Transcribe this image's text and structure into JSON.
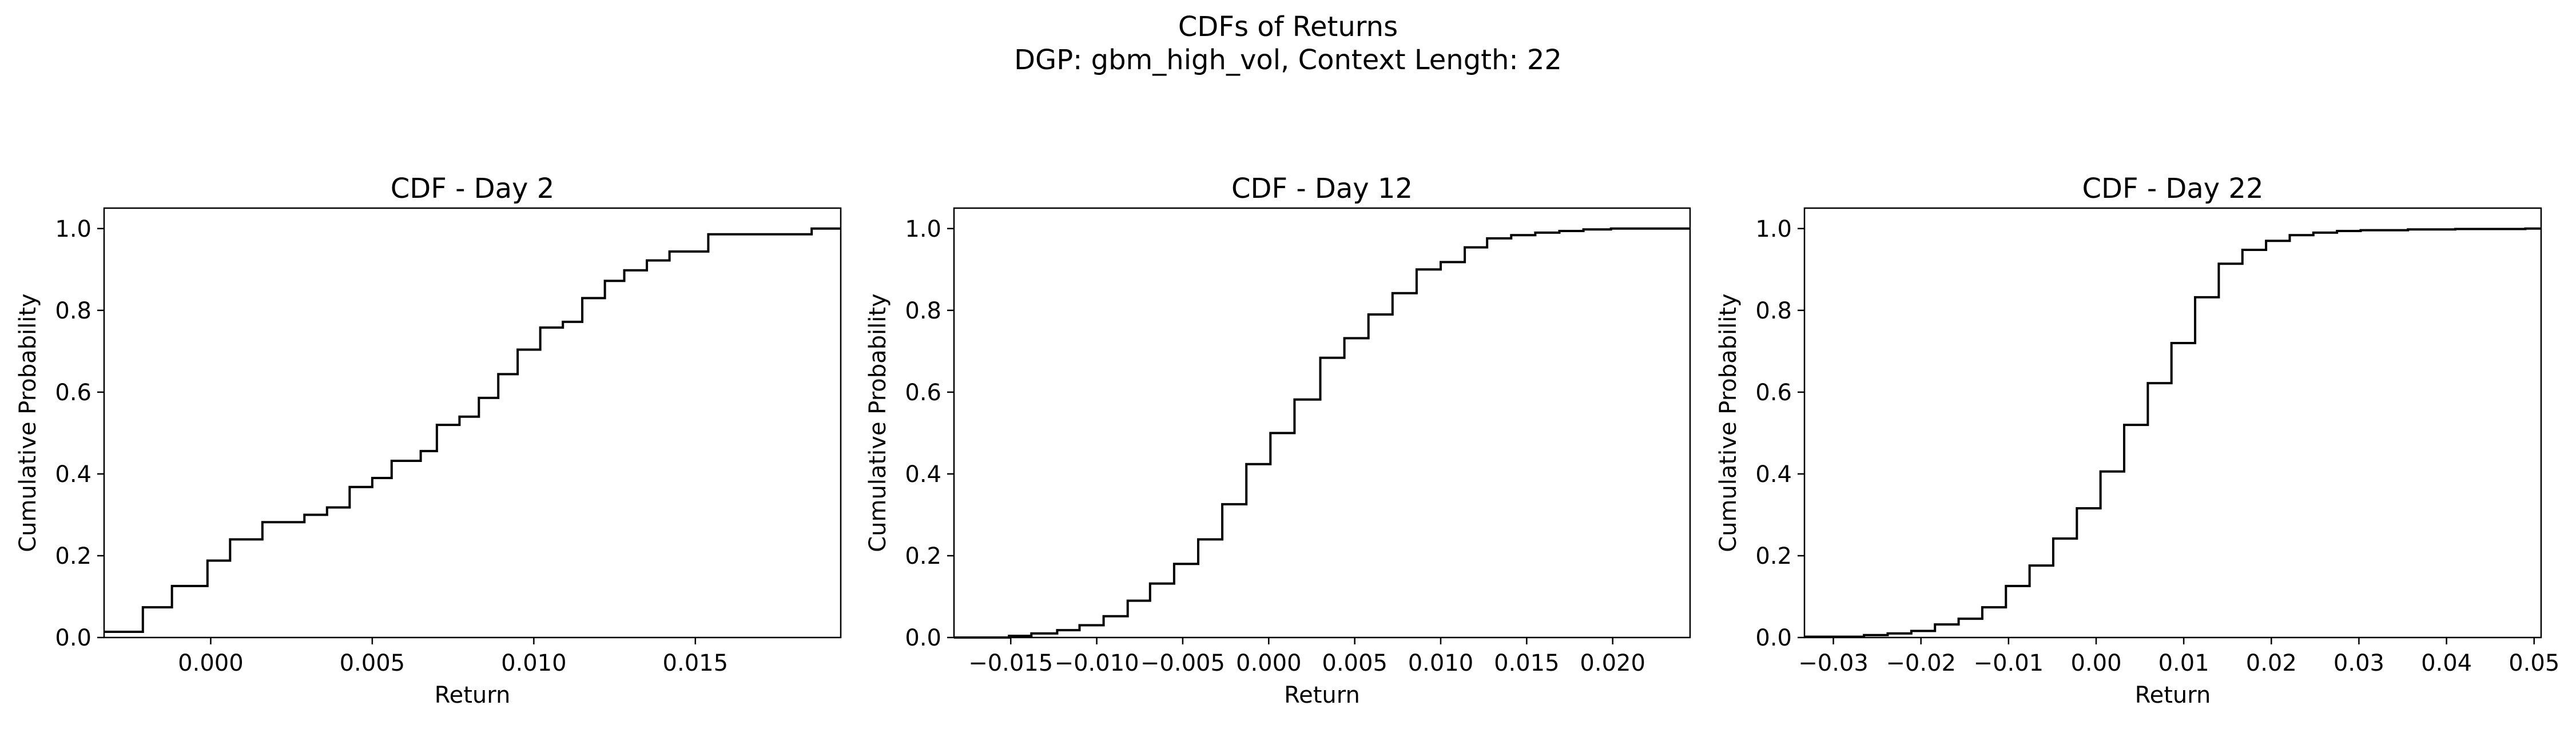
{
  "figure": {
    "title_line1": "CDFs of Returns",
    "title_line2": "DGP: gbm_high_vol, Context Length: 22"
  },
  "chart_data": [
    {
      "type": "line",
      "step": true,
      "title": "CDF - Day 2",
      "xlabel": "Return",
      "ylabel": "Cumulative Probability",
      "xlim": [
        -0.0033,
        0.0195
      ],
      "ylim": [
        0.0,
        1.05
      ],
      "xticks": [
        0.0,
        0.005,
        0.01,
        0.015
      ],
      "xtick_labels": [
        "0.000",
        "0.005",
        "0.010",
        "0.015"
      ],
      "yticks": [
        0.0,
        0.2,
        0.4,
        0.6,
        0.8,
        1.0
      ],
      "ytick_labels": [
        "0.0",
        "0.2",
        "0.4",
        "0.6",
        "0.8",
        "1.0"
      ],
      "grid": false,
      "color": "#000000",
      "series": [
        {
          "x": [
            -0.0033,
            -0.0021,
            -0.0012,
            -0.0001,
            0.0006,
            0.0016,
            0.0025,
            0.0029,
            0.0036,
            0.0043,
            0.005,
            0.0056,
            0.0065,
            0.007,
            0.0077,
            0.0083,
            0.0089,
            0.0095,
            0.0102,
            0.0109,
            0.0115,
            0.0122,
            0.0128,
            0.0135,
            0.0142,
            0.0147,
            0.0154,
            0.0159,
            0.0186,
            0.0195
          ],
          "y": [
            0.014,
            0.074,
            0.126,
            0.188,
            0.24,
            0.282,
            0.282,
            0.3,
            0.318,
            0.368,
            0.39,
            0.432,
            0.456,
            0.52,
            0.54,
            0.586,
            0.644,
            0.704,
            0.758,
            0.772,
            0.83,
            0.872,
            0.898,
            0.922,
            0.944,
            0.944,
            0.986,
            0.986,
            1.0,
            1.0
          ]
        }
      ]
    },
    {
      "type": "line",
      "step": true,
      "title": "CDF - Day 12",
      "xlabel": "Return",
      "ylabel": "Cumulative Probability",
      "xlim": [
        -0.0183,
        0.0245
      ],
      "ylim": [
        0.0,
        1.05
      ],
      "xticks": [
        -0.015,
        -0.01,
        -0.005,
        0.0,
        0.005,
        0.01,
        0.015,
        0.02
      ],
      "xtick_labels": [
        "−0.015",
        "−0.010",
        "−0.005",
        "0.000",
        "0.005",
        "0.010",
        "0.015",
        "0.020"
      ],
      "yticks": [
        0.0,
        0.2,
        0.4,
        0.6,
        0.8,
        1.0
      ],
      "ytick_labels": [
        "0.0",
        "0.2",
        "0.4",
        "0.6",
        "0.8",
        "1.0"
      ],
      "grid": false,
      "color": "#000000",
      "series": [
        {
          "x": [
            -0.0183,
            -0.0151,
            -0.0138,
            -0.0123,
            -0.011,
            -0.0096,
            -0.0082,
            -0.0069,
            -0.0055,
            -0.0041,
            -0.0027,
            -0.0013,
            0.0001,
            0.0015,
            0.003,
            0.0044,
            0.0058,
            0.0072,
            0.0086,
            0.01,
            0.0114,
            0.0127,
            0.0141,
            0.0155,
            0.0169,
            0.0183,
            0.0199,
            0.0245
          ],
          "y": [
            0.0,
            0.004,
            0.01,
            0.018,
            0.03,
            0.052,
            0.09,
            0.132,
            0.18,
            0.24,
            0.326,
            0.424,
            0.5,
            0.582,
            0.684,
            0.732,
            0.79,
            0.842,
            0.9,
            0.918,
            0.954,
            0.976,
            0.984,
            0.99,
            0.994,
            0.998,
            1.0,
            1.0
          ]
        }
      ]
    },
    {
      "type": "line",
      "step": true,
      "title": "CDF - Day 22",
      "xlabel": "Return",
      "ylabel": "Cumulative Probability",
      "xlim": [
        -0.0333,
        0.0508
      ],
      "ylim": [
        0.0,
        1.05
      ],
      "xticks": [
        -0.03,
        -0.02,
        -0.01,
        0.0,
        0.01,
        0.02,
        0.03,
        0.04,
        0.05
      ],
      "xtick_labels": [
        "−0.03",
        "−0.02",
        "−0.01",
        "0.00",
        "0.01",
        "0.02",
        "0.03",
        "0.04",
        "0.05"
      ],
      "yticks": [
        0.0,
        0.2,
        0.4,
        0.6,
        0.8,
        1.0
      ],
      "ytick_labels": [
        "0.0",
        "0.2",
        "0.4",
        "0.6",
        "0.8",
        "1.0"
      ],
      "grid": false,
      "color": "#000000",
      "series": [
        {
          "x": [
            -0.0333,
            -0.0265,
            -0.0238,
            -0.0211,
            -0.0184,
            -0.0157,
            -0.013,
            -0.0103,
            -0.0076,
            -0.0049,
            -0.0022,
            0.0005,
            0.0032,
            0.0059,
            0.0086,
            0.0113,
            0.014,
            0.0167,
            0.0194,
            0.0221,
            0.0248,
            0.0275,
            0.0302,
            0.0356,
            0.041,
            0.049,
            0.0508
          ],
          "y": [
            0.002,
            0.006,
            0.01,
            0.016,
            0.032,
            0.046,
            0.074,
            0.126,
            0.176,
            0.242,
            0.316,
            0.406,
            0.52,
            0.622,
            0.72,
            0.832,
            0.914,
            0.948,
            0.97,
            0.984,
            0.99,
            0.994,
            0.996,
            0.998,
            0.999,
            1.0,
            1.0
          ]
        }
      ]
    }
  ]
}
